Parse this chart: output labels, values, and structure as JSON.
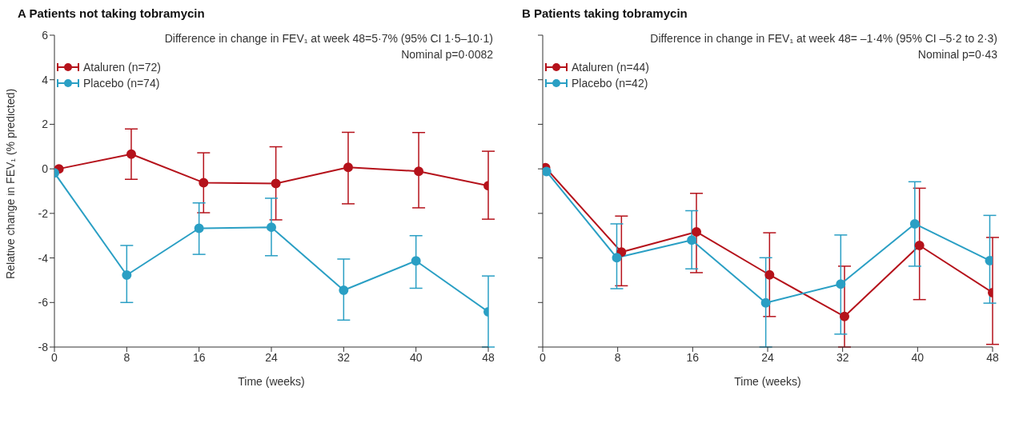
{
  "chart_data": [
    {
      "type": "line",
      "title": "A  Patients not taking tobramycin",
      "xlabel": "Time (weeks)",
      "ylabel": "Relative change in FEV₁ (% predicted)",
      "annotations": [
        "Difference in change in FEV₁ at week 48=5·7% (95% CI 1·5–10·1)",
        "Nominal p=0·0082"
      ],
      "xlim": [
        0,
        48
      ],
      "xticks": [
        0,
        8,
        16,
        24,
        32,
        40,
        48
      ],
      "ylim": [
        -8,
        6
      ],
      "yticks": [
        -8,
        -6,
        -4,
        -2,
        0,
        2,
        4,
        6
      ],
      "grid": false,
      "legend": "top left",
      "marker": "circle",
      "line_style": "solid",
      "series": [
        {
          "name": "Ataluren (n=72)",
          "color": "#b5121b",
          "x": [
            0.5,
            8.5,
            16.5,
            24.5,
            32.5,
            40.3,
            48
          ],
          "values": [
            0,
            0.66,
            -0.62,
            -0.66,
            0.07,
            -0.11,
            -0.76
          ],
          "errors": [
            null,
            [
              -0.47,
              1.79
            ],
            [
              -1.97,
              0.72
            ],
            [
              -2.29,
              0.99
            ],
            [
              -1.57,
              1.64
            ],
            [
              -1.75,
              1.63
            ],
            [
              -2.26,
              0.79
            ]
          ]
        },
        {
          "name": "Placebo (n=74)",
          "color": "#2a9fc4",
          "x": [
            0,
            8,
            16,
            24,
            32,
            40,
            48
          ],
          "values": [
            -0.18,
            -4.77,
            -2.67,
            -2.62,
            -5.45,
            -4.13,
            -6.42
          ],
          "errors": [
            null,
            [
              -6.0,
              -3.44
            ],
            [
              -3.84,
              -1.53
            ],
            [
              -3.9,
              -1.32
            ],
            [
              -6.79,
              -4.05
            ],
            [
              -5.36,
              -3.0
            ],
            [
              -8.0,
              -4.81
            ]
          ]
        }
      ]
    },
    {
      "type": "line",
      "title": "B  Patients taking tobramycin",
      "xlabel": "Time (weeks)",
      "annotations": [
        "Difference in change in FEV₁ at week 48= –1·4% (95% CI –5·2 to 2·3)",
        "Nominal p=0·43"
      ],
      "xlim": [
        0,
        48
      ],
      "xticks": [
        0,
        8,
        16,
        24,
        32,
        40,
        48
      ],
      "ylim": [
        -8,
        6
      ],
      "yticks": [
        {
          "value": -8,
          "label": null
        },
        {
          "value": -6,
          "label": null
        },
        {
          "value": -4,
          "label": null
        },
        {
          "value": -2,
          "label": null
        },
        {
          "value": 0,
          "label": null
        },
        {
          "value": 2,
          "label": null
        },
        {
          "value": 4,
          "label": null
        },
        {
          "value": 6,
          "label": null
        }
      ],
      "tick_labels": "x",
      "grid": false,
      "legend": "top left",
      "marker": "circle",
      "line_style": "solid",
      "series": [
        {
          "name": "Ataluren (n=44)",
          "color": "#b5121b",
          "x": [
            0.3,
            8.4,
            16.4,
            24.2,
            32.2,
            40.2,
            48
          ],
          "values": [
            0.05,
            -3.74,
            -2.83,
            -4.76,
            -6.63,
            -3.44,
            -5.56
          ],
          "errors": [
            null,
            [
              -5.25,
              -2.12
            ],
            [
              -4.66,
              -1.1
            ],
            [
              -6.63,
              -2.87
            ],
            [
              -8.0,
              -4.37
            ],
            [
              -5.87,
              -0.87
            ],
            [
              -7.88,
              -3.08
            ]
          ]
        },
        {
          "name": "Placebo (n=42)",
          "color": "#2a9fc4",
          "x": [
            0.4,
            7.9,
            15.9,
            23.8,
            31.8,
            39.7,
            47.7
          ],
          "values": [
            -0.12,
            -3.99,
            -3.2,
            -6.02,
            -5.17,
            -2.47,
            -4.12
          ],
          "errors": [
            null,
            [
              -5.38,
              -2.47
            ],
            [
              -4.49,
              -1.88
            ],
            [
              -8.0,
              -3.99
            ],
            [
              -7.42,
              -2.97
            ],
            [
              -4.37,
              -0.58
            ],
            [
              -6.03,
              -2.09
            ]
          ]
        }
      ]
    }
  ]
}
